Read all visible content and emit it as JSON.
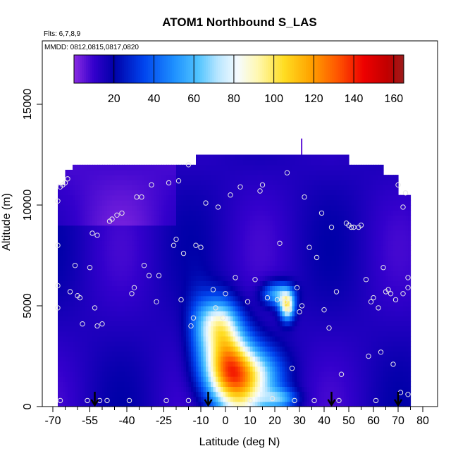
{
  "chart_data": {
    "type": "heatmap",
    "title": "ATOM1 Northbound S_LAS",
    "subtitle_lines": [
      "Flts: 6,7,8,9",
      "MMDD: 0812,0815,0817,0820"
    ],
    "xlabel": "Latitude (deg N)",
    "ylabel": "Altitude (m)",
    "xlim": [
      -70,
      80
    ],
    "ylim": [
      0,
      17500
    ],
    "x_ticks": [
      -70,
      -55,
      -40,
      -25,
      -10,
      0,
      10,
      20,
      30,
      40,
      50,
      60,
      70,
      80
    ],
    "x_tick_labels": [
      "-70",
      "-55",
      "-40",
      "-25",
      "-10",
      "0",
      "10",
      "20",
      "30",
      "40",
      "50",
      "60",
      "70",
      "80"
    ],
    "x_minor_ticks": [
      -65,
      -60,
      -50,
      -45,
      -35,
      -30,
      -20,
      -15,
      -5,
      5,
      15,
      25,
      35,
      45,
      55,
      65,
      75
    ],
    "y_ticks": [
      0,
      5000,
      10000,
      15000
    ],
    "y_tick_labels": [
      "0",
      "5000",
      "10000",
      "15000"
    ],
    "colorbar": {
      "range": [
        0,
        165
      ],
      "tick_values": [
        20,
        40,
        60,
        80,
        100,
        120,
        140,
        160
      ],
      "tick_labels": [
        "20",
        "40",
        "60",
        "80",
        "100",
        "120",
        "140",
        "160"
      ],
      "stops": [
        {
          "v": 0,
          "color": "#8a2be2"
        },
        {
          "v": 10,
          "color": "#3300cc"
        },
        {
          "v": 20,
          "color": "#0000a8"
        },
        {
          "v": 35,
          "color": "#0044ee"
        },
        {
          "v": 50,
          "color": "#1e90ff"
        },
        {
          "v": 62,
          "color": "#4fc3ff"
        },
        {
          "v": 72,
          "color": "#b8e6ff"
        },
        {
          "v": 82,
          "color": "#f6fbff"
        },
        {
          "v": 92,
          "color": "#fff8b0"
        },
        {
          "v": 105,
          "color": "#ffdd22"
        },
        {
          "v": 118,
          "color": "#ffa500"
        },
        {
          "v": 132,
          "color": "#ff5500"
        },
        {
          "v": 145,
          "color": "#ee0000"
        },
        {
          "v": 157,
          "color": "#c00000"
        },
        {
          "v": 165,
          "color": "#9b1b1b"
        }
      ]
    },
    "field_features": [
      {
        "x": 0,
        "y": 2000,
        "amp": 82,
        "sx": 10,
        "sy": 1800
      },
      {
        "x": -3,
        "y": 4200,
        "amp": 55,
        "sx": 8,
        "sy": 1300
      },
      {
        "x": 12,
        "y": 1500,
        "amp": 50,
        "sx": 11,
        "sy": 1400
      },
      {
        "x": 25,
        "y": 5000,
        "amp": 75,
        "sx": 3,
        "sy": 700
      },
      {
        "x": 21,
        "y": 5600,
        "amp": 45,
        "sx": 6,
        "sy": 600
      },
      {
        "x": 22,
        "y": 400,
        "amp": 35,
        "sx": 7,
        "sy": 500
      },
      {
        "x": -11,
        "y": 4000,
        "amp": 12,
        "sx": 5,
        "sy": 2000
      }
    ],
    "data_extent": {
      "x_range": [
        -68,
        75
      ],
      "y_max_segments": [
        {
          "x0": -68,
          "x1": -65,
          "y": 11000
        },
        {
          "x0": -65,
          "x1": -62,
          "y": 11600
        },
        {
          "x0": -62,
          "x1": -12,
          "y": 12000
        },
        {
          "x0": -12,
          "x1": 50,
          "y": 12500
        },
        {
          "x0": 50,
          "x1": 64,
          "y": 12000
        },
        {
          "x0": 64,
          "x1": 70,
          "y": 11500
        },
        {
          "x0": 70,
          "x1": 75,
          "y": 10500
        }
      ]
    },
    "profile_points": [
      [
        -67,
        10900
      ],
      [
        -66,
        11000
      ],
      [
        -65,
        11100
      ],
      [
        -64,
        11300
      ],
      [
        -68,
        10200
      ],
      [
        -68,
        8000
      ],
      [
        -68,
        6000
      ],
      [
        -68,
        4900
      ],
      [
        -67,
        300
      ],
      [
        -63,
        5700
      ],
      [
        -61,
        7000
      ],
      [
        -60,
        5500
      ],
      [
        -59,
        5400
      ],
      [
        -58,
        4100
      ],
      [
        -56,
        300
      ],
      [
        -55,
        6900
      ],
      [
        -54,
        8600
      ],
      [
        -53,
        4900
      ],
      [
        -52,
        8500
      ],
      [
        -52,
        4000
      ],
      [
        -51,
        300
      ],
      [
        -50,
        4100
      ],
      [
        -48,
        300
      ],
      [
        -47,
        9200
      ],
      [
        -46,
        9300
      ],
      [
        -44,
        9500
      ],
      [
        -42,
        9600
      ],
      [
        -39,
        300
      ],
      [
        -38,
        5600
      ],
      [
        -37,
        5900
      ],
      [
        -36,
        10400
      ],
      [
        -34,
        10400
      ],
      [
        -33,
        7000
      ],
      [
        -31,
        6500
      ],
      [
        -30,
        11000
      ],
      [
        -28,
        5200
      ],
      [
        -27,
        6500
      ],
      [
        -24,
        300
      ],
      [
        -23,
        11100
      ],
      [
        -21,
        8000
      ],
      [
        -20,
        8300
      ],
      [
        -19,
        11200
      ],
      [
        -18,
        5300
      ],
      [
        -17,
        7600
      ],
      [
        -15,
        12000
      ],
      [
        -15,
        300
      ],
      [
        -14,
        4000
      ],
      [
        -13,
        4400
      ],
      [
        -12,
        8000
      ],
      [
        -10,
        7900
      ],
      [
        -8,
        10100
      ],
      [
        -5,
        5800
      ],
      [
        -4,
        4900
      ],
      [
        -3,
        9900
      ],
      [
        -1,
        4400
      ],
      [
        0,
        5600
      ],
      [
        2,
        10500
      ],
      [
        4,
        6400
      ],
      [
        6,
        10900
      ],
      [
        9,
        5200
      ],
      [
        10,
        300
      ],
      [
        12,
        6300
      ],
      [
        14,
        10700
      ],
      [
        15,
        11000
      ],
      [
        17,
        5400
      ],
      [
        19,
        400
      ],
      [
        21,
        5300
      ],
      [
        22,
        8100
      ],
      [
        24,
        5200
      ],
      [
        25,
        11600
      ],
      [
        26,
        4800
      ],
      [
        27,
        1900
      ],
      [
        28,
        300
      ],
      [
        29,
        5900
      ],
      [
        30,
        4700
      ],
      [
        31,
        5000
      ],
      [
        32,
        10400
      ],
      [
        34,
        7900
      ],
      [
        36,
        300
      ],
      [
        37,
        7400
      ],
      [
        39,
        9600
      ],
      [
        40,
        4800
      ],
      [
        42,
        3900
      ],
      [
        43,
        8900
      ],
      [
        45,
        5700
      ],
      [
        46,
        300
      ],
      [
        47,
        1600
      ],
      [
        49,
        9100
      ],
      [
        50,
        9000
      ],
      [
        51,
        8900
      ],
      [
        52,
        8900
      ],
      [
        54,
        8900
      ],
      [
        55,
        9000
      ],
      [
        57,
        6300
      ],
      [
        58,
        2500
      ],
      [
        59,
        5200
      ],
      [
        60,
        5400
      ],
      [
        61,
        300
      ],
      [
        62,
        4900
      ],
      [
        63,
        2700
      ],
      [
        64,
        6900
      ],
      [
        65,
        5700
      ],
      [
        66,
        5800
      ],
      [
        67,
        5600
      ],
      [
        68,
        2100
      ],
      [
        69,
        5300
      ],
      [
        70,
        11000
      ],
      [
        71,
        700
      ],
      [
        72,
        5600
      ],
      [
        72,
        9900
      ],
      [
        73,
        10600
      ],
      [
        74,
        6400
      ],
      [
        74,
        5900
      ],
      [
        74,
        600
      ]
    ],
    "flight_arrows_x": [
      -53,
      -7,
      43,
      70
    ]
  }
}
